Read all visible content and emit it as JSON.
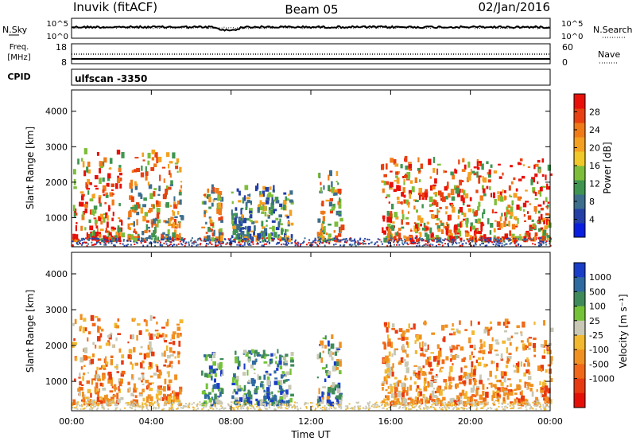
{
  "header": {
    "station": "Inuvik (fitACF)",
    "beam": "Beam 05",
    "date": "02/Jan/2016"
  },
  "sky_panel": {
    "left_label": "N.Sky",
    "right_label": "N.Search",
    "right_legend_marker": "dotted",
    "y_ticks": [
      "10^5",
      "10^0"
    ]
  },
  "freq_panel": {
    "left_label_line1": "Freq.",
    "left_label_line2": "[MHz]",
    "left_ticks": [
      "18",
      "8"
    ],
    "right_ticks": [
      "60",
      "0"
    ],
    "right_label": "Nave",
    "right_legend_marker": "dotted"
  },
  "cpid": {
    "label": "CPID",
    "value": "ulfscan -3350"
  },
  "chart_data": [
    {
      "type": "heatmap",
      "title": "",
      "xlabel": "",
      "ylabel": "Slant Range [km]",
      "xlim": [
        "00:00",
        "00:00"
      ],
      "ylim": [
        180,
        4600
      ],
      "x_ticks": [
        "00:00",
        "04:00",
        "08:00",
        "12:00",
        "16:00",
        "20:00",
        "00:00"
      ],
      "y_ticks": [
        1000,
        2000,
        3000,
        4000
      ],
      "colorbar": {
        "label": "Power [dB]",
        "range": [
          0,
          32
        ],
        "ticks": [
          4,
          8,
          12,
          16,
          20,
          24,
          28
        ],
        "colors": [
          "#0a1ee0",
          "#243fa6",
          "#3d6e8c",
          "#3f9550",
          "#7dbd3a",
          "#f0c828",
          "#f4a020",
          "#f07a18",
          "#e84010",
          "#e81008"
        ]
      },
      "echo_regions_hours_km": [
        {
          "t0": 0.0,
          "t1": 2.5,
          "r0": 300,
          "r1": 2800,
          "level": "strong"
        },
        {
          "t0": 2.8,
          "t1": 5.5,
          "r0": 300,
          "r1": 2800,
          "level": "medium"
        },
        {
          "t0": 6.5,
          "t1": 7.5,
          "r0": 300,
          "r1": 1800,
          "level": "medium"
        },
        {
          "t0": 8.0,
          "t1": 11.0,
          "r0": 300,
          "r1": 1800,
          "level": "weak"
        },
        {
          "t0": 12.3,
          "t1": 13.5,
          "r0": 300,
          "r1": 2200,
          "level": "medium"
        },
        {
          "t0": 15.5,
          "t1": 24.0,
          "r0": 300,
          "r1": 2600,
          "level": "strong"
        }
      ]
    },
    {
      "type": "heatmap",
      "title": "",
      "xlabel": "Time UT",
      "ylabel": "Slant Range [km]",
      "xlim": [
        "00:00",
        "00:00"
      ],
      "ylim": [
        180,
        4600
      ],
      "x_ticks": [
        "00:00",
        "04:00",
        "08:00",
        "12:00",
        "16:00",
        "20:00",
        "00:00"
      ],
      "y_ticks": [
        1000,
        2000,
        3000,
        4000
      ],
      "colorbar": {
        "label": "Velocity [m s⁻¹]",
        "ticks": [
          1000,
          500,
          100,
          25,
          -25,
          -100,
          -500,
          -1000
        ],
        "colors": [
          "#1a3ec8",
          "#2f6aa0",
          "#3f8a5a",
          "#74c238",
          "#c8c8b4",
          "#f2b830",
          "#f09020",
          "#f06818",
          "#e83a10",
          "#e41008"
        ]
      },
      "echo_regions_hours_km": [
        {
          "t0": 0.0,
          "t1": 2.5,
          "r0": 300,
          "r1": 2800,
          "level": "negative"
        },
        {
          "t0": 2.8,
          "t1": 5.5,
          "r0": 300,
          "r1": 2800,
          "level": "negative"
        },
        {
          "t0": 6.5,
          "t1": 7.5,
          "r0": 300,
          "r1": 1800,
          "level": "positive"
        },
        {
          "t0": 8.0,
          "t1": 11.0,
          "r0": 300,
          "r1": 1800,
          "level": "positive"
        },
        {
          "t0": 12.3,
          "t1": 13.5,
          "r0": 300,
          "r1": 2200,
          "level": "mixed"
        },
        {
          "t0": 15.5,
          "t1": 24.0,
          "r0": 300,
          "r1": 2600,
          "level": "negative"
        }
      ]
    }
  ]
}
